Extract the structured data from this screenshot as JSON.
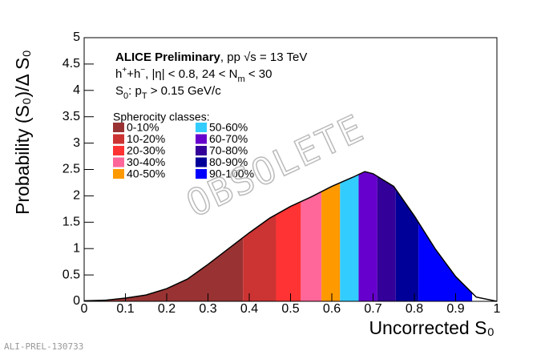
{
  "chart_data": {
    "type": "area",
    "xlabel": "Uncorrected S₀",
    "ylabel": "Probability (S₀)/Δ S₀",
    "annotations": [
      [
        {
          "t": "ALICE Preliminary",
          "f": "b"
        },
        {
          "t": ", pp √s = 13 TeV"
        }
      ],
      [
        {
          "t": "h"
        },
        {
          "t": "+",
          "f": "sup"
        },
        {
          "t": "+h"
        },
        {
          "t": "−",
          "f": "sup"
        },
        {
          "t": ", |η| < 0.8, 24 < N"
        },
        {
          "t": "m",
          "f": "sub"
        },
        {
          "t": " < 30"
        }
      ],
      [
        {
          "t": "S"
        },
        {
          "t": "0",
          "f": "sub"
        },
        {
          "t": ": p"
        },
        {
          "t": "T",
          "f": "sub"
        },
        {
          "t": " > 0.15 GeV/c"
        }
      ]
    ],
    "legend_title": "Spherocity classes:",
    "watermark": "OBSOLETE",
    "footer": "ALI-PREL-130733",
    "x": [
      0,
      0.05,
      0.1,
      0.15,
      0.2,
      0.25,
      0.3,
      0.35,
      0.4,
      0.45,
      0.5,
      0.55,
      0.6,
      0.65,
      0.68,
      0.7,
      0.75,
      0.8,
      0.85,
      0.9,
      0.95,
      1
    ],
    "values": [
      0.01,
      0.02,
      0.06,
      0.12,
      0.24,
      0.42,
      0.7,
      1.0,
      1.3,
      1.58,
      1.8,
      1.98,
      2.18,
      2.35,
      2.46,
      2.42,
      2.18,
      1.62,
      1.0,
      0.47,
      0.08,
      0
    ],
    "color": "#000000",
    "classes": [
      {
        "name": "0-10%",
        "color": "#993333",
        "range": [
          0.03,
          0.385
        ]
      },
      {
        "name": "10-20%",
        "color": "#cc3333",
        "range": [
          0.385,
          0.465
        ]
      },
      {
        "name": "20-30%",
        "color": "#ff3333",
        "range": [
          0.465,
          0.525
        ]
      },
      {
        "name": "30-40%",
        "color": "#ff6699",
        "range": [
          0.525,
          0.575
        ]
      },
      {
        "name": "40-50%",
        "color": "#ff9900",
        "range": [
          0.575,
          0.62
        ]
      },
      {
        "name": "50-60%",
        "color": "#33ccff",
        "range": [
          0.62,
          0.665
        ]
      },
      {
        "name": "60-70%",
        "color": "#6600cc",
        "range": [
          0.665,
          0.71
        ]
      },
      {
        "name": "70-80%",
        "color": "#330099",
        "range": [
          0.71,
          0.755
        ]
      },
      {
        "name": "80-90%",
        "color": "#000099",
        "range": [
          0.755,
          0.81
        ]
      },
      {
        "name": "90-100%",
        "color": "#0000ff",
        "range": [
          0.81,
          0.94
        ]
      }
    ],
    "xlim": [
      0,
      1
    ],
    "ylim": [
      0,
      5
    ],
    "xticks": [
      0,
      0.1,
      0.2,
      0.3,
      0.4,
      0.5,
      0.6,
      0.7,
      0.8,
      0.9,
      1
    ],
    "yticks": [
      0,
      0.5,
      1,
      1.5,
      2,
      2.5,
      3,
      3.5,
      4,
      4.5,
      5
    ]
  }
}
